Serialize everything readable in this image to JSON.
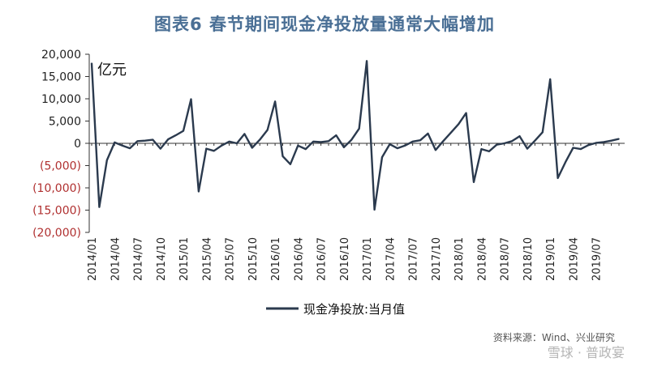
{
  "title": "图表6  春节期间现金净投放量通常大幅增加",
  "colors": {
    "title": "#4a6f95",
    "line": "#2b3a4e",
    "positive_tick": "#222222",
    "negative_tick": "#b03030",
    "axis": "#333333"
  },
  "source_note": "资料来源：Wind、兴业研究",
  "watermark": "雪球 · 普政宴",
  "chart_data": {
    "type": "line",
    "title": "图表6  春节期间现金净投放量通常大幅增加",
    "unit_label": "亿元",
    "xlabel": "",
    "ylabel": "",
    "ylim": [
      -20000,
      20000
    ],
    "yticks": [
      {
        "v": 20000,
        "label": "20,000"
      },
      {
        "v": 15000,
        "label": "15,000"
      },
      {
        "v": 10000,
        "label": "10,000"
      },
      {
        "v": 5000,
        "label": "5,000"
      },
      {
        "v": 0,
        "label": "0"
      },
      {
        "v": -5000,
        "label": "(5,000)"
      },
      {
        "v": -10000,
        "label": "(10,000)"
      },
      {
        "v": -15000,
        "label": "(15,000)"
      },
      {
        "v": -20000,
        "label": "(20,000)"
      }
    ],
    "x_tick_labels": [
      "2014/01",
      "2014/04",
      "2014/07",
      "2014/10",
      "2015/01",
      "2015/04",
      "2015/07",
      "2015/10",
      "2016/01",
      "2016/04",
      "2016/07",
      "2016/10",
      "2017/01",
      "2017/04",
      "2017/07",
      "2017/10",
      "2018/01",
      "2018/04",
      "2018/07",
      "2018/10",
      "2019/01",
      "2019/04",
      "2019/07"
    ],
    "legend": "top-left",
    "grid": false,
    "series": [
      {
        "name": "现金净投放:当月值",
        "x": [
          "2014/01",
          "2014/02",
          "2014/03",
          "2014/04",
          "2014/05",
          "2014/06",
          "2014/07",
          "2014/08",
          "2014/09",
          "2014/10",
          "2014/11",
          "2014/12",
          "2015/01",
          "2015/02",
          "2015/03",
          "2015/04",
          "2015/05",
          "2015/06",
          "2015/07",
          "2015/08",
          "2015/09",
          "2015/10",
          "2015/11",
          "2015/12",
          "2016/01",
          "2016/02",
          "2016/03",
          "2016/04",
          "2016/05",
          "2016/06",
          "2016/07",
          "2016/08",
          "2016/09",
          "2016/10",
          "2016/11",
          "2016/12",
          "2017/01",
          "2017/02",
          "2017/03",
          "2017/04",
          "2017/05",
          "2017/06",
          "2017/07",
          "2017/08",
          "2017/09",
          "2017/10",
          "2017/11",
          "2017/12",
          "2018/01",
          "2018/02",
          "2018/03",
          "2018/04",
          "2018/05",
          "2018/06",
          "2018/07",
          "2018/08",
          "2018/09",
          "2018/10",
          "2018/11",
          "2018/12",
          "2019/01",
          "2019/02",
          "2019/03",
          "2019/04",
          "2019/05",
          "2019/06",
          "2019/07",
          "2019/08",
          "2019/09",
          "2019/10"
        ],
        "values": [
          18000,
          -14300,
          -3800,
          200,
          -500,
          -1100,
          500,
          600,
          800,
          -1200,
          900,
          1800,
          2800,
          9900,
          -10800,
          -1200,
          -1700,
          -500,
          400,
          0,
          2100,
          -1000,
          800,
          3000,
          9400,
          -2900,
          -4700,
          -500,
          -1300,
          400,
          300,
          500,
          1800,
          -900,
          800,
          3300,
          18500,
          -14900,
          -3100,
          -200,
          -1100,
          -500,
          400,
          700,
          2200,
          -1500,
          500,
          2400,
          4300,
          6800,
          -8700,
          -1300,
          -1800,
          -300,
          0,
          500,
          1600,
          -1200,
          600,
          2500,
          14400,
          -7800,
          -4200,
          -1000,
          -1300,
          -400,
          100,
          300,
          600,
          1000
        ]
      }
    ]
  }
}
